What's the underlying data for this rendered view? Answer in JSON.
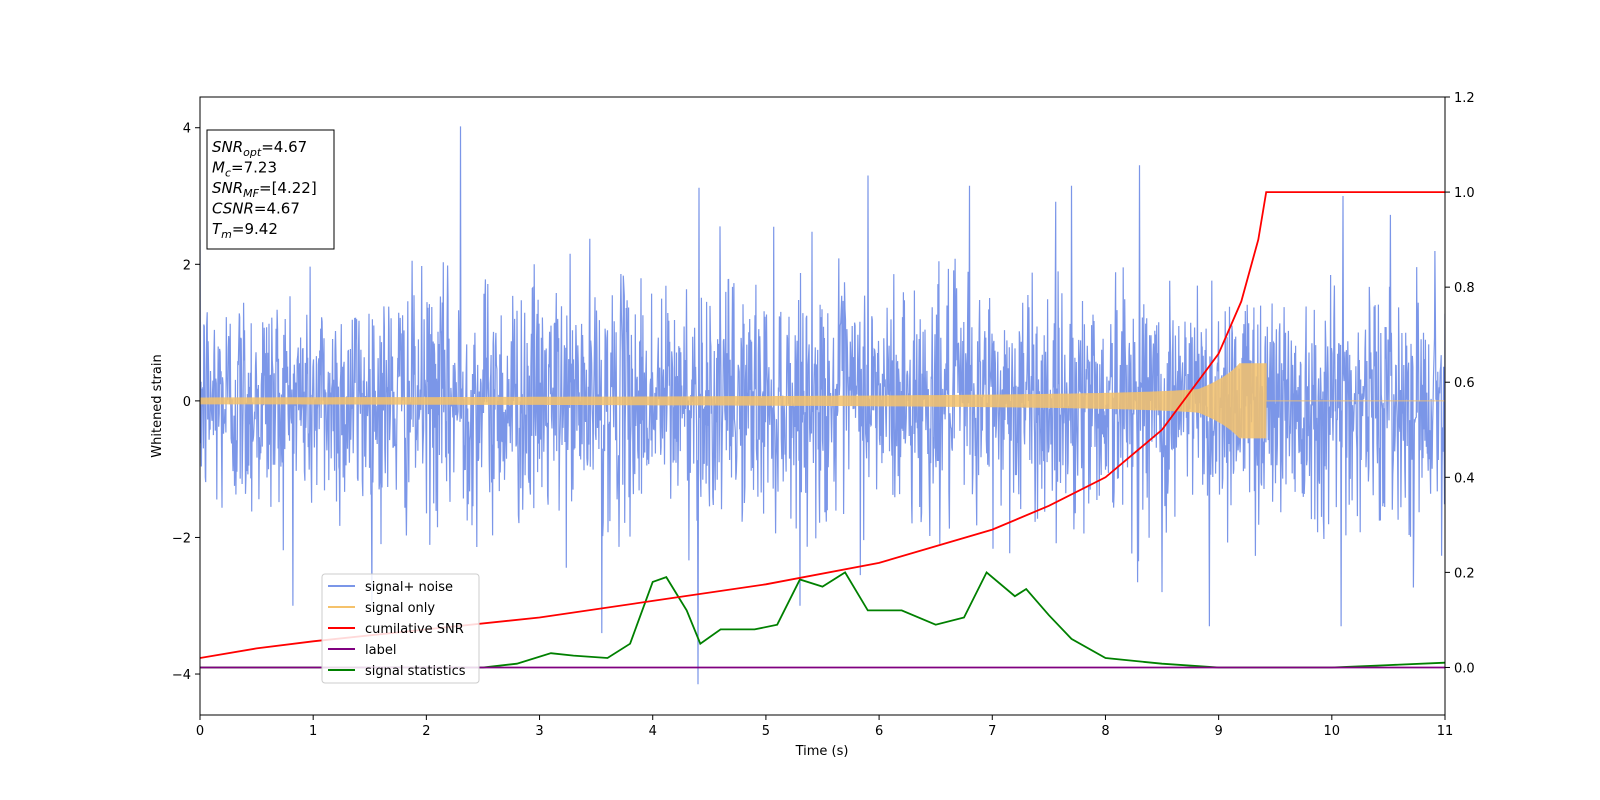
{
  "chart_data": {
    "type": "line",
    "xlabel": "Time (s)",
    "ylabel": "Whitened strain",
    "xlim": [
      0,
      11
    ],
    "ylim": [
      -4.6,
      4.45
    ],
    "y2lim": [
      -0.1,
      1.2
    ],
    "x_ticks": [
      "0",
      "1",
      "2",
      "3",
      "4",
      "5",
      "6",
      "7",
      "8",
      "9",
      "10",
      "11"
    ],
    "x_tick_values": [
      0,
      1,
      2,
      3,
      4,
      5,
      6,
      7,
      8,
      9,
      10,
      11
    ],
    "y_ticks": [
      "4",
      "2",
      "0",
      "−2",
      "−4"
    ],
    "y_tick_values": [
      4,
      2,
      0,
      -2,
      -4
    ],
    "y2_ticks": [
      "1.2",
      "1.0",
      "0.8",
      "0.6",
      "0.4",
      "0.2",
      "0.0"
    ],
    "y2_tick_values": [
      1.2,
      1.0,
      0.8,
      0.6,
      0.4,
      0.2,
      0.0
    ],
    "legend_position": "lower-left",
    "annotations": [
      {
        "main": "SNR",
        "sub": "opt",
        "rest": "=4.67"
      },
      {
        "main": "M",
        "sub": "c",
        "rest": "=7.23"
      },
      {
        "main": "SNR",
        "sub": "MF",
        "rest": "=[4.22]"
      },
      {
        "main": "CSNR",
        "sub": "",
        "rest": "=4.67"
      },
      {
        "main": "T",
        "sub": "m",
        "rest": "=9.42"
      }
    ],
    "series": [
      {
        "name": "signal+ noise",
        "color": "#7b96e8",
        "axis": "left",
        "noise_std": 0.85,
        "peaks": [
          [
            2.3,
            4.02
          ],
          [
            4.4,
            -4.15
          ],
          [
            4.41,
            3.12
          ],
          [
            8.3,
            3.45
          ],
          [
            3.55,
            -3.4
          ],
          [
            8.5,
            -2.8
          ],
          [
            8.92,
            -3.3
          ],
          [
            10.08,
            -3.3
          ],
          [
            10.1,
            3.0
          ],
          [
            6.8,
            3.15
          ],
          [
            7.7,
            3.15
          ],
          [
            5.9,
            3.3
          ]
        ]
      },
      {
        "name": "signal only",
        "color": "#f5c26b",
        "axis": "left",
        "merger_time": 9.42,
        "peak_amp": 0.55
      },
      {
        "name": "cumilative SNR",
        "color": "#ff0000",
        "axis": "right",
        "points": [
          [
            0,
            0.02
          ],
          [
            0.5,
            0.04
          ],
          [
            1,
            0.055
          ],
          [
            2,
            0.08
          ],
          [
            3,
            0.105
          ],
          [
            4,
            0.14
          ],
          [
            5,
            0.175
          ],
          [
            6,
            0.22
          ],
          [
            7,
            0.29
          ],
          [
            7.5,
            0.34
          ],
          [
            8,
            0.4
          ],
          [
            8.5,
            0.5
          ],
          [
            9,
            0.66
          ],
          [
            9.2,
            0.77
          ],
          [
            9.35,
            0.9
          ],
          [
            9.42,
            1.0
          ],
          [
            11,
            1.0
          ]
        ]
      },
      {
        "name": "label",
        "color": "#800080",
        "axis": "right",
        "points": [
          [
            0,
            0.0
          ],
          [
            11,
            0.0
          ]
        ]
      },
      {
        "name": "signal statistics",
        "color": "#008000",
        "axis": "right",
        "points": [
          [
            0,
            0.0
          ],
          [
            2.5,
            0.0
          ],
          [
            2.8,
            0.008
          ],
          [
            3.1,
            0.03
          ],
          [
            3.3,
            0.025
          ],
          [
            3.6,
            0.02
          ],
          [
            3.8,
            0.05
          ],
          [
            4.0,
            0.18
          ],
          [
            4.12,
            0.19
          ],
          [
            4.3,
            0.12
          ],
          [
            4.42,
            0.05
          ],
          [
            4.6,
            0.08
          ],
          [
            4.9,
            0.08
          ],
          [
            5.1,
            0.09
          ],
          [
            5.3,
            0.185
          ],
          [
            5.5,
            0.17
          ],
          [
            5.7,
            0.2
          ],
          [
            5.9,
            0.12
          ],
          [
            6.2,
            0.12
          ],
          [
            6.5,
            0.09
          ],
          [
            6.75,
            0.105
          ],
          [
            6.95,
            0.2
          ],
          [
            7.2,
            0.15
          ],
          [
            7.3,
            0.165
          ],
          [
            7.5,
            0.11
          ],
          [
            7.7,
            0.06
          ],
          [
            8.0,
            0.02
          ],
          [
            8.5,
            0.008
          ],
          [
            9.0,
            0.0
          ],
          [
            10.0,
            0.0
          ],
          [
            10.5,
            0.005
          ],
          [
            11.0,
            0.01
          ]
        ]
      }
    ]
  }
}
